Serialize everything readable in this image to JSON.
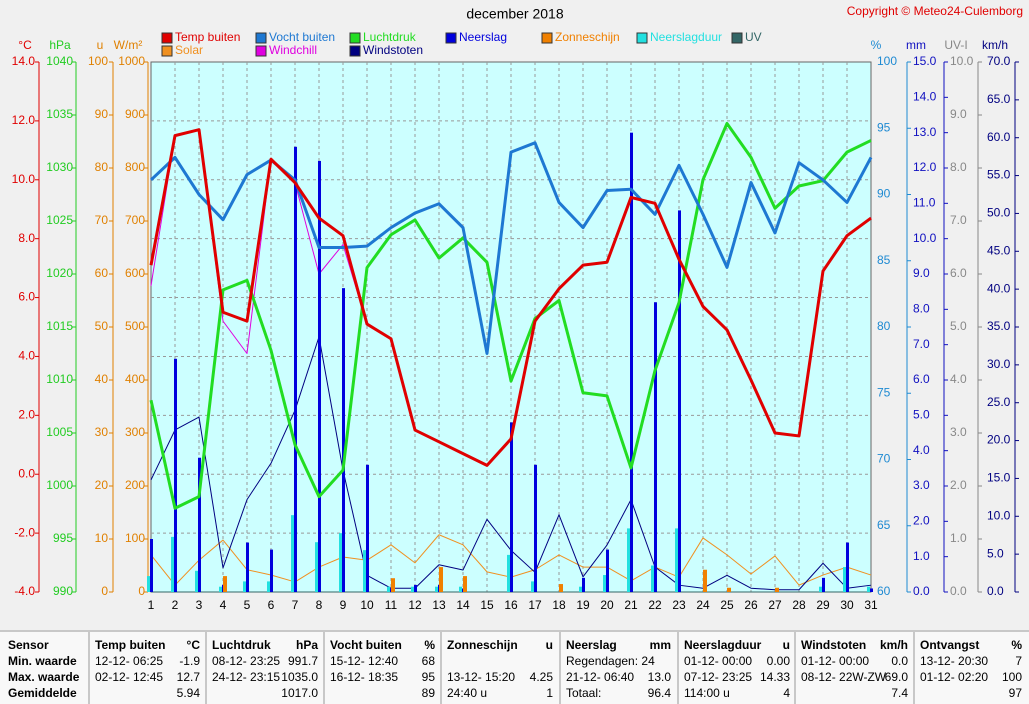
{
  "chart_data": {
    "type": "combo",
    "title": "december 2018",
    "copyright": "Copyright © Meteo24-Culemborg",
    "x": [
      1,
      2,
      3,
      4,
      5,
      6,
      7,
      8,
      9,
      10,
      11,
      12,
      13,
      14,
      15,
      16,
      17,
      18,
      19,
      20,
      21,
      22,
      23,
      24,
      25,
      26,
      27,
      28,
      29,
      30,
      31
    ],
    "xlim": [
      1,
      31
    ],
    "xticks": [
      1,
      2,
      3,
      4,
      5,
      6,
      7,
      8,
      9,
      10,
      11,
      12,
      13,
      14,
      15,
      16,
      17,
      18,
      19,
      20,
      21,
      22,
      23,
      24,
      25,
      26,
      27,
      28,
      29,
      30,
      31
    ],
    "grid": true,
    "axes": [
      {
        "unit": "°C",
        "color": "#e00000",
        "lim": [
          -4,
          14
        ],
        "ticks": [
          {
            "value": -4,
            "label": "-4.0"
          },
          {
            "value": -2,
            "label": "-2.0"
          },
          {
            "value": 0,
            "label": "0.0"
          },
          {
            "value": 2,
            "label": "2.0"
          },
          {
            "value": 4,
            "label": "4.0"
          },
          {
            "value": 6,
            "label": "6.0"
          },
          {
            "value": 8,
            "label": "8.0"
          },
          {
            "value": 10,
            "label": "10.0"
          },
          {
            "value": 12,
            "label": "12.0"
          },
          {
            "value": 14,
            "label": "14.0"
          }
        ]
      },
      {
        "unit": "hPa",
        "color": "#22cc22",
        "lim": [
          990,
          1040
        ],
        "ticks": [
          990,
          995,
          1000,
          1005,
          1010,
          1015,
          1020,
          1025,
          1030,
          1035,
          1040
        ]
      },
      {
        "unit": "u",
        "color": "#e08000",
        "lim": [
          0,
          100
        ],
        "ticks": [
          0,
          10,
          20,
          30,
          40,
          50,
          60,
          70,
          80,
          90,
          100
        ]
      },
      {
        "unit": "W/m²",
        "color": "#e08000",
        "lim": [
          0,
          1000
        ],
        "ticks": [
          0,
          100,
          200,
          300,
          400,
          500,
          600,
          700,
          800,
          900,
          1000
        ]
      },
      {
        "unit": "%",
        "color": "#1e8ad2",
        "lim": [
          60,
          100
        ],
        "ticks": [
          60,
          65,
          70,
          75,
          80,
          85,
          90,
          95,
          100
        ]
      },
      {
        "unit": "mm",
        "color": "#1010c0",
        "lim": [
          0,
          15
        ],
        "ticks": [
          {
            "value": 0,
            "label": "0.0"
          },
          {
            "value": 1,
            "label": "1.0"
          },
          {
            "value": 2,
            "label": "2.0"
          },
          {
            "value": 3,
            "label": "3.0"
          },
          {
            "value": 4,
            "label": "4.0"
          },
          {
            "value": 5,
            "label": "5.0"
          },
          {
            "value": 6,
            "label": "6.0"
          },
          {
            "value": 7,
            "label": "7.0"
          },
          {
            "value": 8,
            "label": "8.0"
          },
          {
            "value": 9,
            "label": "9.0"
          },
          {
            "value": 10,
            "label": "10.0"
          },
          {
            "value": 11,
            "label": "11.0"
          },
          {
            "value": 12,
            "label": "12.0"
          },
          {
            "value": 13,
            "label": "13.0"
          },
          {
            "value": 14,
            "label": "14.0"
          },
          {
            "value": 15,
            "label": "15.0"
          }
        ]
      },
      {
        "unit": "UV-I",
        "color": "#888888",
        "lim": [
          0,
          10
        ],
        "ticks": [
          {
            "value": 0,
            "label": "0.0"
          },
          {
            "value": 1,
            "label": "1.0"
          },
          {
            "value": 2,
            "label": "2.0"
          },
          {
            "value": 3,
            "label": "3.0"
          },
          {
            "value": 4,
            "label": "4.0"
          },
          {
            "value": 5,
            "label": "5.0"
          },
          {
            "value": 6,
            "label": "6.0"
          },
          {
            "value": 7,
            "label": "7.0"
          },
          {
            "value": 8,
            "label": "8.0"
          },
          {
            "value": 9,
            "label": "9.0"
          },
          {
            "value": 10,
            "label": "10.0"
          }
        ]
      },
      {
        "unit": "km/h",
        "color": "#000080",
        "lim": [
          0,
          70
        ],
        "ticks": [
          {
            "value": 0,
            "label": "0.0"
          },
          {
            "value": 5,
            "label": "5.0"
          },
          {
            "value": 10,
            "label": "10.0"
          },
          {
            "value": 15,
            "label": "15.0"
          },
          {
            "value": 20,
            "label": "20.0"
          },
          {
            "value": 25,
            "label": "25.0"
          },
          {
            "value": 30,
            "label": "30.0"
          },
          {
            "value": 35,
            "label": "35.0"
          },
          {
            "value": 40,
            "label": "40.0"
          },
          {
            "value": 45,
            "label": "45.0"
          },
          {
            "value": 50,
            "label": "50.0"
          },
          {
            "value": 55,
            "label": "55.0"
          },
          {
            "value": 60,
            "label": "60.0"
          },
          {
            "value": 65,
            "label": "65.0"
          },
          {
            "value": 70,
            "label": "70.0"
          }
        ]
      }
    ],
    "series": [
      {
        "name": "Temp buiten",
        "color": "#e00000",
        "type": "line",
        "axis": 0,
        "width": 3,
        "values": [
          7.1,
          11.5,
          11.7,
          5.5,
          5.2,
          10.7,
          9.9,
          8.7,
          8.1,
          5.1,
          4.6,
          1.5,
          1.1,
          0.7,
          0.3,
          1.2,
          5.2,
          6.3,
          7.1,
          7.2,
          9.4,
          9.2,
          7.3,
          5.7,
          4.9,
          3.2,
          1.4,
          1.3,
          6.9,
          8.1,
          8.7
        ]
      },
      {
        "name": "Solar",
        "color": "#f09020",
        "type": "line",
        "axis": 3,
        "width": 1,
        "values": [
          70,
          13,
          60,
          98,
          42,
          32,
          19,
          47,
          66,
          60,
          89,
          55,
          108,
          89,
          38,
          28,
          42,
          70,
          47,
          47,
          21,
          47,
          28,
          102,
          70,
          34,
          68,
          13,
          32,
          47,
          32
        ]
      },
      {
        "name": "Vocht buiten",
        "color": "#1e78d2",
        "type": "line",
        "axis": 4,
        "width": 3,
        "values": [
          91.1,
          92.8,
          90.0,
          88.1,
          91.5,
          92.6,
          91.1,
          86.0,
          86.0,
          86.1,
          87.5,
          88.6,
          89.3,
          87.5,
          78.0,
          93.2,
          93.9,
          89.4,
          87.5,
          90.3,
          90.4,
          88.5,
          92.2,
          88.5,
          84.5,
          90.9,
          87.1,
          92.4,
          91.1,
          89.4,
          92.8
        ]
      },
      {
        "name": "Windchill",
        "color": "#e000e0",
        "type": "line",
        "axis": 0,
        "width": 1,
        "values": [
          6.4,
          11.5,
          11.7,
          5.2,
          4.1,
          10.7,
          9.9,
          6.8,
          7.8,
          5.1,
          4.6,
          1.5,
          1.1,
          0.7,
          0.3,
          1.2,
          5.2,
          6.3,
          7.1,
          7.2,
          9.4,
          9.2,
          7.3,
          5.7,
          4.9,
          3.2,
          1.4,
          1.3,
          6.9,
          8.1,
          8.7
        ]
      },
      {
        "name": "Luchtdruk",
        "color": "#22dd22",
        "type": "line",
        "axis": 1,
        "width": 3,
        "values": [
          1008.1,
          997.9,
          999.0,
          1018.5,
          1019.4,
          1012.8,
          1003.9,
          999.0,
          1001.5,
          1020.6,
          1023.7,
          1025.1,
          1021.5,
          1023.4,
          1021.1,
          1009.9,
          1015.8,
          1017.5,
          1008.8,
          1008.5,
          1001.7,
          1010.9,
          1017.3,
          1028.9,
          1034.2,
          1031.0,
          1026.2,
          1028.3,
          1028.8,
          1031.5,
          1032.6
        ]
      },
      {
        "name": "Windstoten",
        "color": "#000080",
        "type": "line",
        "axis": 7,
        "width": 1,
        "values": [
          14.8,
          21.4,
          23.1,
          3.2,
          12.2,
          17,
          24,
          33.7,
          16.1,
          2.2,
          0.5,
          0.5,
          3.6,
          2.9,
          9.6,
          5.5,
          2.6,
          10.2,
          2,
          6.2,
          12.2,
          3.3,
          0.9,
          0.5,
          2.2,
          0.5,
          0.3,
          0.3,
          3.8,
          0.5,
          0.9
        ]
      },
      {
        "name": "Neerslag",
        "color": "#0000dd",
        "type": "bar",
        "axis": 5,
        "values": [
          1.5,
          6.6,
          3.8,
          0.2,
          1.4,
          1.2,
          12.6,
          12.2,
          8.6,
          3.6,
          0.1,
          0.2,
          0.2,
          0.1,
          0,
          4.8,
          3.6,
          0,
          0.4,
          1.2,
          13.0,
          8.2,
          10.8,
          0,
          0,
          0,
          0,
          0,
          0.4,
          1.4,
          0.1
        ]
      },
      {
        "name": "Zonneschijn",
        "color": "#f08000",
        "type": "bar",
        "axis": 2,
        "values": [
          0,
          0,
          0,
          3,
          0,
          0,
          0,
          0,
          0,
          0,
          2.6,
          0,
          4.7,
          3,
          0,
          0,
          0,
          1.5,
          0,
          0,
          0,
          0,
          0,
          4.2,
          0.8,
          0,
          0.8,
          0,
          0,
          0,
          0
        ]
      },
      {
        "name": "Neerslagduur",
        "color": "#22e0e0",
        "type": "bar",
        "axis": 2,
        "values": [
          3,
          10.4,
          4,
          1,
          2,
          2,
          14.5,
          9.4,
          11.1,
          7.9,
          1,
          1,
          1,
          1,
          0,
          7,
          2,
          0,
          1,
          3.2,
          12,
          5,
          12,
          0,
          0,
          0,
          0,
          0,
          1,
          4.7,
          1
        ]
      },
      {
        "name": "UV",
        "color": "#336666",
        "type": "line",
        "axis": 6,
        "width": 1,
        "values": [
          0,
          0,
          0,
          0,
          0,
          0,
          0,
          0,
          0,
          0,
          0,
          0,
          0,
          0,
          0,
          0,
          0,
          0,
          0,
          0,
          0,
          0,
          0,
          0,
          0,
          0,
          0,
          0,
          0,
          0,
          0
        ]
      }
    ]
  },
  "summary": {
    "sensor": {
      "header": "Sensor",
      "rows": [
        "Min. waarde",
        "Max. waarde",
        "Gemiddelde"
      ]
    },
    "blocks": [
      {
        "header": [
          "Temp buiten",
          "°C"
        ],
        "rows": [
          [
            "12-12- 06:25",
            "-1.9"
          ],
          [
            "02-12- 12:45",
            "12.7"
          ],
          [
            null,
            "5.94"
          ]
        ]
      },
      {
        "header": [
          "Luchtdruk",
          "hPa"
        ],
        "rows": [
          [
            "08-12- 23:25",
            "991.7"
          ],
          [
            "24-12- 23:15",
            "1035.0"
          ],
          [
            null,
            "1017.0"
          ]
        ]
      },
      {
        "header": [
          "Vocht buiten",
          "%"
        ],
        "rows": [
          [
            "15-12- 12:40",
            "68"
          ],
          [
            "16-12- 18:35",
            "95"
          ],
          [
            null,
            "89"
          ]
        ]
      },
      {
        "header": [
          "Zonneschijn",
          "u"
        ],
        "rows": [
          [
            null,
            null
          ],
          [
            "13-12- 15:20",
            "4.25"
          ],
          [
            "24:40 u",
            "1"
          ]
        ]
      },
      {
        "header": [
          "Neerslag",
          "mm"
        ],
        "rows": [
          [
            "Regendagen: 24",
            null
          ],
          [
            "21-12- 06:40",
            "13.0"
          ],
          [
            "Totaal:",
            "96.4"
          ]
        ]
      },
      {
        "header": [
          "Neerslagduur",
          "u"
        ],
        "rows": [
          [
            "01-12- 00:00",
            "0.00"
          ],
          [
            "07-12- 23:25",
            "14.33"
          ],
          [
            "114:00 u",
            "4"
          ]
        ]
      },
      {
        "header": [
          "Windstoten",
          "km/h"
        ],
        "rows": [
          [
            "01-12- 00:00",
            "0.0"
          ],
          [
            "08-12- 22W-ZW",
            "69.0"
          ],
          [
            null,
            "7.4"
          ]
        ]
      },
      {
        "header": [
          "Ontvangst",
          "%"
        ],
        "rows": [
          [
            "13-12- 20:30",
            "7"
          ],
          [
            "01-12- 02:20",
            "100"
          ],
          [
            null,
            "97"
          ]
        ]
      }
    ]
  }
}
